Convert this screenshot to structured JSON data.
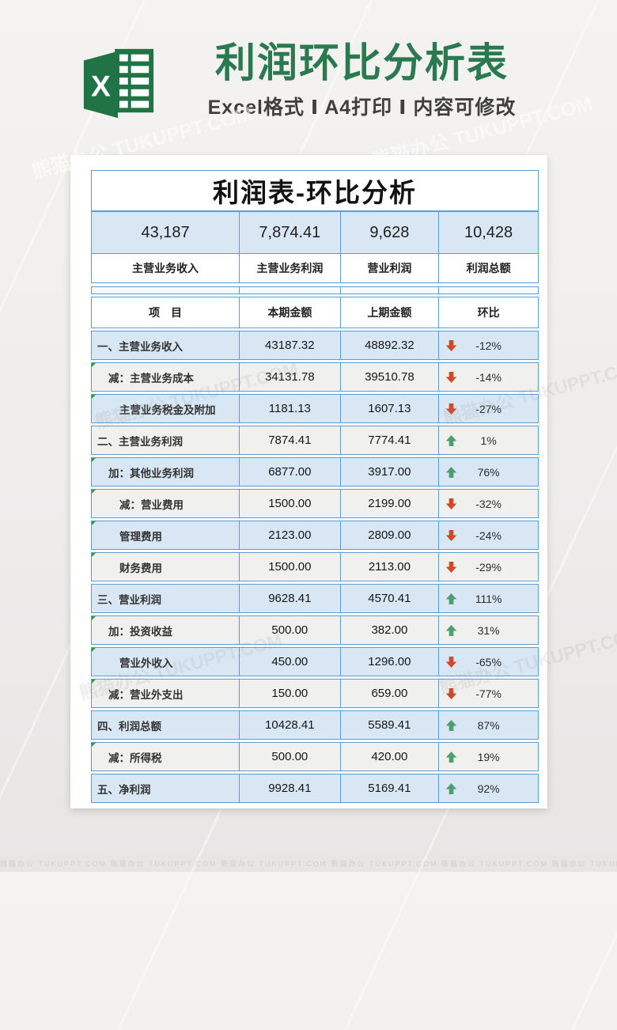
{
  "header": {
    "title": "利润环比分析表",
    "subtitle": "Excel格式 Ⅰ A4打印 Ⅰ 内容可修改",
    "excel_letter": "X"
  },
  "watermark": {
    "text": "熊猫办公 TUKUPPT.COM"
  },
  "sheet": {
    "title": "利润表-环比分析",
    "kpis": [
      {
        "value": "43,187",
        "label": "主营业务收入"
      },
      {
        "value": "7,874.41",
        "label": "主营业务利润"
      },
      {
        "value": "9,628",
        "label": "营业利润"
      },
      {
        "value": "10,428",
        "label": "利润总额"
      }
    ],
    "columns": [
      "项　目",
      "本期金额",
      "上期金额",
      "环比"
    ],
    "rows": [
      {
        "item": "一、主营业务收入",
        "indent": 0,
        "current": "43187.32",
        "previous": "48892.32",
        "trend": "down",
        "pct": "-12%",
        "corner": false
      },
      {
        "item": "减：主营业务成本",
        "indent": 1,
        "current": "34131.78",
        "previous": "39510.78",
        "trend": "down",
        "pct": "-14%",
        "corner": true
      },
      {
        "item": "主营业务税金及附加",
        "indent": 2,
        "current": "1181.13",
        "previous": "1607.13",
        "trend": "down",
        "pct": "-27%",
        "corner": true
      },
      {
        "item": "二、主营业务利润",
        "indent": 0,
        "current": "7874.41",
        "previous": "7774.41",
        "trend": "up",
        "pct": "1%",
        "corner": false
      },
      {
        "item": "加：其他业务利润",
        "indent": 1,
        "current": "6877.00",
        "previous": "3917.00",
        "trend": "up",
        "pct": "76%",
        "corner": true
      },
      {
        "item": "减：营业费用",
        "indent": 2,
        "current": "1500.00",
        "previous": "2199.00",
        "trend": "down",
        "pct": "-32%",
        "corner": true
      },
      {
        "item": "管理费用",
        "indent": 2,
        "current": "2123.00",
        "previous": "2809.00",
        "trend": "down",
        "pct": "-24%",
        "corner": true
      },
      {
        "item": "财务费用",
        "indent": 2,
        "current": "1500.00",
        "previous": "2113.00",
        "trend": "down",
        "pct": "-29%",
        "corner": true
      },
      {
        "item": "三、营业利润",
        "indent": 0,
        "current": "9628.41",
        "previous": "4570.41",
        "trend": "up",
        "pct": "111%",
        "corner": false
      },
      {
        "item": "加：投资收益",
        "indent": 1,
        "current": "500.00",
        "previous": "382.00",
        "trend": "up",
        "pct": "31%",
        "corner": true
      },
      {
        "item": "营业外收入",
        "indent": 2,
        "current": "450.00",
        "previous": "1296.00",
        "trend": "down",
        "pct": "-65%",
        "corner": true
      },
      {
        "item": "减：营业外支出",
        "indent": 1,
        "current": "150.00",
        "previous": "659.00",
        "trend": "down",
        "pct": "-77%",
        "corner": true
      },
      {
        "item": "四、利润总额",
        "indent": 0,
        "current": "10428.41",
        "previous": "5589.41",
        "trend": "up",
        "pct": "87%",
        "corner": false
      },
      {
        "item": "减：所得税",
        "indent": 1,
        "current": "500.00",
        "previous": "420.00",
        "trend": "up",
        "pct": "19%",
        "corner": true
      },
      {
        "item": "五、净利润",
        "indent": 0,
        "current": "9928.41",
        "previous": "5169.41",
        "trend": "up",
        "pct": "92%",
        "corner": false
      }
    ]
  },
  "colors": {
    "excel_green": "#217346",
    "title_green": "#2a7a50",
    "table_border_blue": "#5b9bd5",
    "row_blue": "#d9e7f5",
    "row_gray": "#f0f0ef",
    "arrow_down_red": "#d24726",
    "arrow_up_green": "#4f9e6e"
  }
}
